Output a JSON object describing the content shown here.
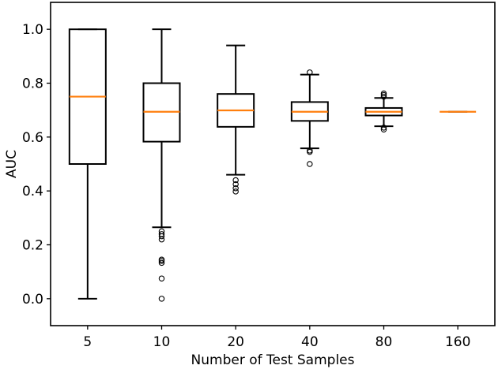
{
  "chart_data": {
    "type": "box",
    "title": "",
    "xlabel": "Number of Test Samples",
    "ylabel": "AUC",
    "ylim": [
      -0.1,
      1.1
    ],
    "yticks": [
      0.0,
      0.2,
      0.4,
      0.6,
      0.8,
      1.0
    ],
    "ytick_labels": [
      "0.0",
      "0.2",
      "0.4",
      "0.6",
      "0.8",
      "1.0"
    ],
    "categories": [
      "5",
      "10",
      "20",
      "40",
      "80",
      "160"
    ],
    "boxes": [
      {
        "label": "5",
        "whisker_low": 0.0,
        "q1": 0.5,
        "median": 0.75,
        "q3": 1.0,
        "whisker_high": 1.0,
        "outliers": []
      },
      {
        "label": "10",
        "whisker_low": 0.265,
        "q1": 0.583,
        "median": 0.694,
        "q3": 0.8,
        "whisker_high": 1.0,
        "outliers": [
          0.25,
          0.24,
          0.232,
          0.22,
          0.145,
          0.14,
          0.133,
          0.075,
          0.0
        ]
      },
      {
        "label": "20",
        "whisker_low": 0.46,
        "q1": 0.638,
        "median": 0.699,
        "q3": 0.76,
        "whisker_high": 0.94,
        "outliers": [
          0.44,
          0.425,
          0.41,
          0.398
        ]
      },
      {
        "label": "40",
        "whisker_low": 0.558,
        "q1": 0.66,
        "median": 0.694,
        "q3": 0.73,
        "whisker_high": 0.832,
        "outliers": [
          0.84,
          0.55,
          0.545,
          0.5
        ]
      },
      {
        "label": "80",
        "whisker_low": 0.64,
        "q1": 0.68,
        "median": 0.694,
        "q3": 0.708,
        "whisker_high": 0.745,
        "outliers": [
          0.762,
          0.756,
          0.75,
          0.635,
          0.628
        ]
      },
      {
        "label": "160",
        "whisker_low": 0.694,
        "q1": 0.694,
        "median": 0.694,
        "q3": 0.694,
        "whisker_high": 0.694,
        "outliers": []
      }
    ],
    "colors": {
      "box": "#000000",
      "median": "#ff7f0e",
      "outlier_edge": "#000000"
    }
  }
}
